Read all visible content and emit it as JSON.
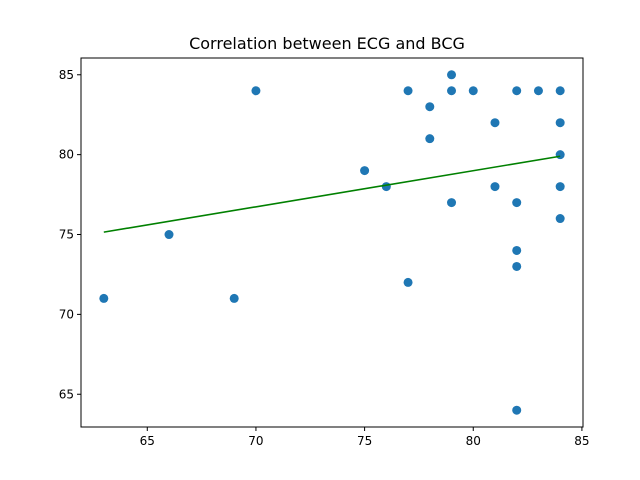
{
  "chart_data": {
    "type": "scatter",
    "title": "Correlation between ECG and BCG",
    "xlabel": "",
    "ylabel": "",
    "xlim": [
      61.95,
      85.05
    ],
    "ylim": [
      62.95,
      86.05
    ],
    "xticks": [
      65,
      70,
      75,
      80,
      85
    ],
    "yticks": [
      65,
      70,
      75,
      80,
      85
    ],
    "grid": false,
    "points": [
      {
        "x": 63,
        "y": 71
      },
      {
        "x": 66,
        "y": 75
      },
      {
        "x": 69,
        "y": 71
      },
      {
        "x": 70,
        "y": 84
      },
      {
        "x": 75,
        "y": 79
      },
      {
        "x": 76,
        "y": 78
      },
      {
        "x": 77,
        "y": 84
      },
      {
        "x": 77,
        "y": 72
      },
      {
        "x": 78,
        "y": 83
      },
      {
        "x": 78,
        "y": 81
      },
      {
        "x": 79,
        "y": 85
      },
      {
        "x": 79,
        "y": 84
      },
      {
        "x": 79,
        "y": 77
      },
      {
        "x": 80,
        "y": 84
      },
      {
        "x": 81,
        "y": 82
      },
      {
        "x": 81,
        "y": 78
      },
      {
        "x": 82,
        "y": 84
      },
      {
        "x": 82,
        "y": 77
      },
      {
        "x": 82,
        "y": 74
      },
      {
        "x": 82,
        "y": 73
      },
      {
        "x": 82,
        "y": 64
      },
      {
        "x": 83,
        "y": 84
      },
      {
        "x": 84,
        "y": 84
      },
      {
        "x": 84,
        "y": 82
      },
      {
        "x": 84,
        "y": 80
      },
      {
        "x": 84,
        "y": 78
      },
      {
        "x": 84,
        "y": 76
      }
    ],
    "fit_line": {
      "x": [
        63,
        84
      ],
      "y": [
        75.15,
        79.9
      ]
    },
    "colors": {
      "points": "#1f77b4",
      "fit_line": "#008000",
      "axes": "#000000"
    }
  }
}
